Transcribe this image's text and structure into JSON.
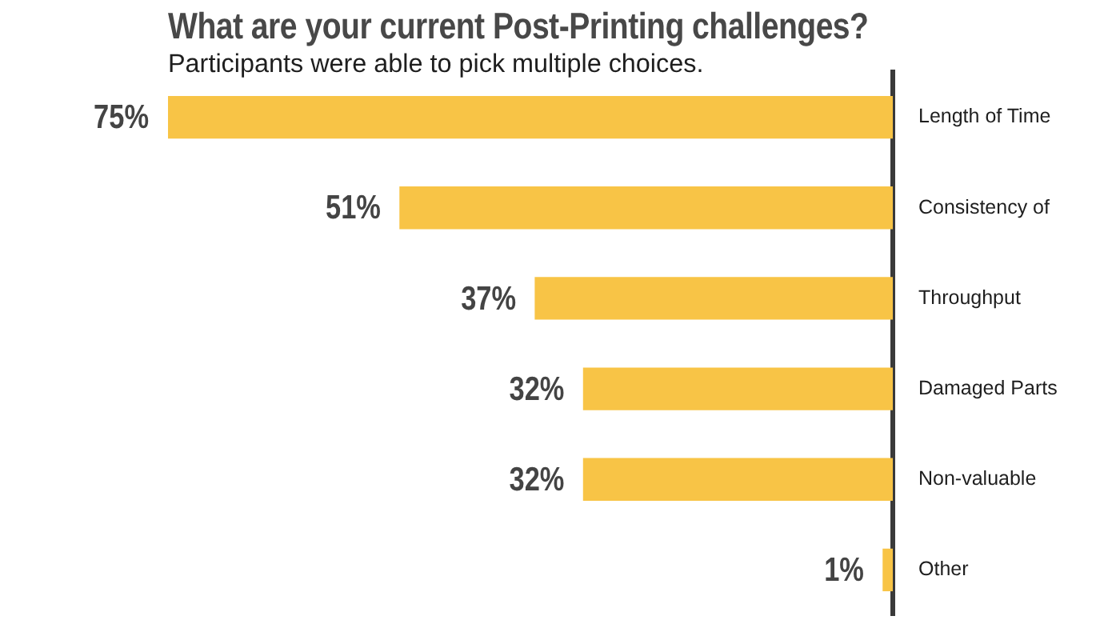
{
  "chart_data": {
    "type": "bar",
    "orientation": "horizontal",
    "title": "What are your current Post-Printing challenges?",
    "subtitle": "Participants were able to pick multiple choices.",
    "categories": [
      "Length of Time",
      "Consistency of",
      "Throughput",
      "Damaged Parts",
      "Non-valuable",
      "Other"
    ],
    "values": [
      75,
      51,
      37,
      32,
      32,
      1
    ],
    "value_labels": [
      "75%",
      "51%",
      "37%",
      "32%",
      "32%",
      "1%"
    ],
    "color": "#f8c446"
  }
}
